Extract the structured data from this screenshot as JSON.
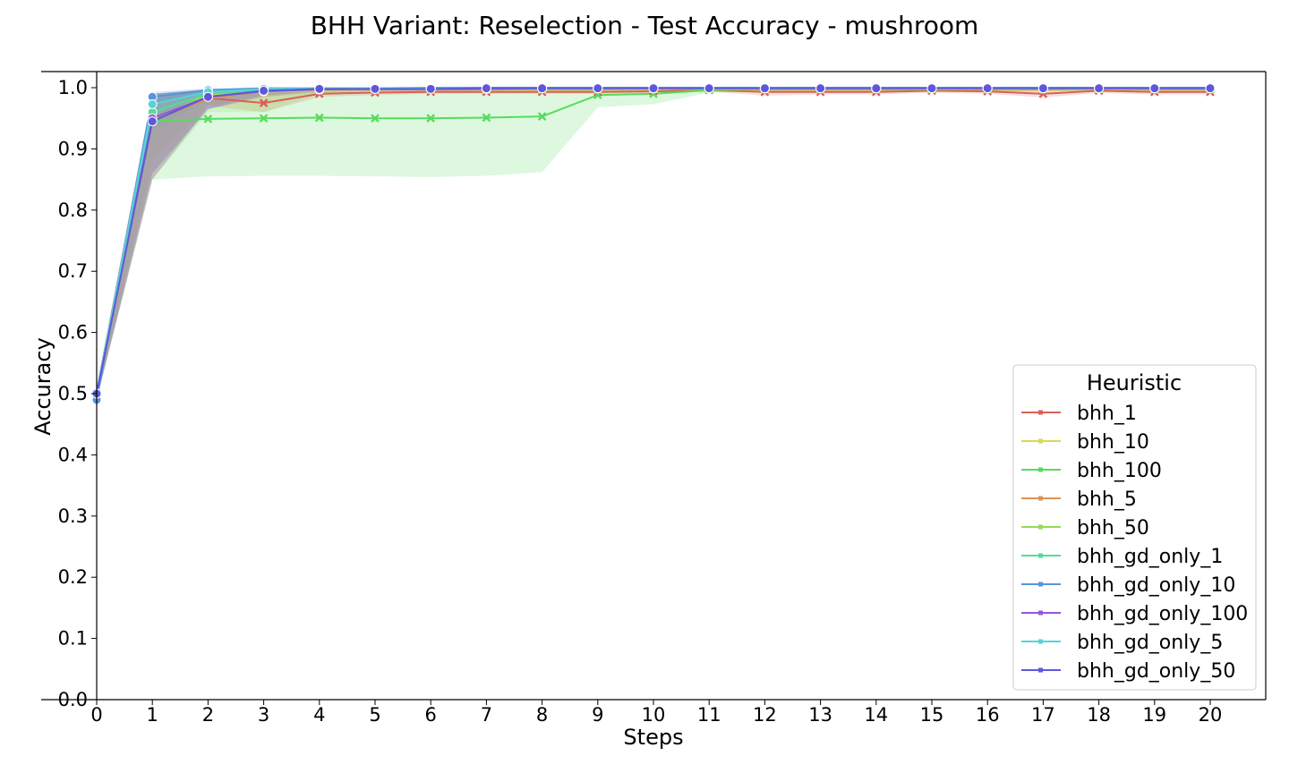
{
  "chart_data": {
    "type": "line",
    "title": "BHH Variant: Reselection - Test Accuracy - mushroom",
    "xlabel": "Steps",
    "ylabel": "Accuracy",
    "xlim": [
      0,
      21
    ],
    "ylim": [
      0.0,
      1.0
    ],
    "xticks": [
      "0",
      "1",
      "2",
      "3",
      "4",
      "5",
      "6",
      "7",
      "8",
      "9",
      "10",
      "11",
      "12",
      "13",
      "14",
      "15",
      "16",
      "17",
      "18",
      "19",
      "20"
    ],
    "yticks": [
      "0.0",
      "0.1",
      "0.2",
      "0.3",
      "0.4",
      "0.5",
      "0.6",
      "0.7",
      "0.8",
      "0.9",
      "1.0"
    ],
    "grid": false,
    "legend_title": "Heuristic",
    "legend_position": "lower-right",
    "x": [
      0,
      1,
      2,
      3,
      4,
      5,
      6,
      7,
      8,
      9,
      10,
      11,
      12,
      13,
      14,
      15,
      16,
      17,
      18,
      19,
      20
    ],
    "series": [
      {
        "name": "bhh_1",
        "color": "#db5f57",
        "marker": "x",
        "values": [
          0.5,
          0.95,
          0.983,
          0.975,
          0.99,
          0.992,
          0.993,
          0.993,
          0.993,
          0.993,
          0.994,
          0.996,
          0.993,
          0.993,
          0.993,
          0.995,
          0.994,
          0.99,
          0.995,
          0.993,
          0.993
        ],
        "ci_low": [
          0.49,
          0.85,
          0.97,
          0.96,
          0.985,
          0.988,
          0.99,
          0.99,
          0.99,
          0.99,
          0.991,
          0.993,
          0.987,
          0.989,
          0.989,
          0.992,
          0.99,
          0.984,
          0.991,
          0.989,
          0.989
        ],
        "ci_high": [
          0.51,
          0.99,
          0.995,
          0.99,
          0.995,
          0.996,
          0.996,
          0.996,
          0.996,
          0.996,
          0.997,
          0.999,
          0.998,
          0.997,
          0.997,
          0.998,
          0.998,
          0.996,
          0.999,
          0.997,
          0.997
        ]
      },
      {
        "name": "bhh_10",
        "color": "#d3db57",
        "marker": "x",
        "values": [
          0.5,
          0.945,
          0.987,
          0.993,
          0.996,
          0.997,
          0.997,
          0.997,
          0.997,
          0.997,
          0.998,
          0.998,
          0.997,
          0.997,
          0.997,
          0.998,
          0.997,
          0.997,
          0.998,
          0.997,
          0.997
        ],
        "ci_low": [
          0.49,
          0.88,
          0.97,
          0.985,
          0.99,
          0.994,
          0.994,
          0.994,
          0.994,
          0.994,
          0.995,
          0.995,
          0.994,
          0.994,
          0.994,
          0.995,
          0.994,
          0.994,
          0.995,
          0.994,
          0.994
        ],
        "ci_high": [
          0.51,
          0.99,
          0.997,
          0.999,
          1.0,
          1.0,
          1.0,
          1.0,
          1.0,
          1.0,
          1.0,
          1.0,
          1.0,
          1.0,
          1.0,
          1.0,
          1.0,
          1.0,
          1.0,
          1.0,
          1.0
        ]
      },
      {
        "name": "bhh_100",
        "color": "#57db5f",
        "marker": "x",
        "values": [
          0.5,
          0.945,
          0.949,
          0.95,
          0.951,
          0.95,
          0.95,
          0.951,
          0.953,
          0.988,
          0.99,
          0.996,
          0.997,
          0.997,
          0.997,
          0.997,
          0.997,
          0.997,
          0.998,
          0.998,
          0.998
        ],
        "ci_low": [
          0.49,
          0.85,
          0.855,
          0.856,
          0.856,
          0.855,
          0.854,
          0.856,
          0.862,
          0.968,
          0.973,
          0.992,
          0.994,
          0.994,
          0.994,
          0.994,
          0.994,
          0.994,
          0.995,
          0.995,
          0.995
        ],
        "ci_high": [
          0.51,
          0.99,
          0.995,
          0.997,
          0.998,
          0.998,
          0.998,
          0.998,
          0.998,
          0.999,
          0.999,
          1.0,
          1.0,
          1.0,
          1.0,
          1.0,
          1.0,
          1.0,
          1.0,
          1.0,
          1.0
        ]
      },
      {
        "name": "bhh_5",
        "color": "#db9457",
        "marker": "x",
        "values": [
          0.5,
          0.945,
          0.982,
          0.994,
          0.997,
          0.997,
          0.997,
          0.997,
          0.997,
          0.997,
          0.998,
          0.998,
          0.997,
          0.997,
          0.997,
          0.998,
          0.997,
          0.997,
          0.998,
          0.997,
          0.997
        ],
        "ci_low": [
          0.49,
          0.86,
          0.965,
          0.985,
          0.994,
          0.994,
          0.994,
          0.994,
          0.994,
          0.994,
          0.995,
          0.995,
          0.994,
          0.994,
          0.994,
          0.995,
          0.994,
          0.994,
          0.995,
          0.994,
          0.994
        ],
        "ci_high": [
          0.51,
          0.99,
          0.995,
          0.999,
          1.0,
          1.0,
          1.0,
          1.0,
          1.0,
          1.0,
          1.0,
          1.0,
          1.0,
          1.0,
          1.0,
          1.0,
          1.0,
          1.0,
          1.0,
          1.0,
          1.0
        ]
      },
      {
        "name": "bhh_50",
        "color": "#94db57",
        "marker": "x",
        "values": [
          0.5,
          0.945,
          0.99,
          0.993,
          0.998,
          0.998,
          0.998,
          0.998,
          0.998,
          0.998,
          0.998,
          0.998,
          0.998,
          0.998,
          0.998,
          0.998,
          0.998,
          0.998,
          0.998,
          0.998,
          0.998
        ],
        "ci_low": [
          0.49,
          0.85,
          0.96,
          0.96,
          0.99,
          0.995,
          0.995,
          0.995,
          0.995,
          0.995,
          0.995,
          0.995,
          0.995,
          0.995,
          0.995,
          0.995,
          0.995,
          0.995,
          0.995,
          0.995,
          0.995
        ],
        "ci_high": [
          0.51,
          0.99,
          0.998,
          0.999,
          1.0,
          1.0,
          1.0,
          1.0,
          1.0,
          1.0,
          1.0,
          1.0,
          1.0,
          1.0,
          1.0,
          1.0,
          1.0,
          1.0,
          1.0,
          1.0,
          1.0
        ]
      },
      {
        "name": "bhh_gd_only_1",
        "color": "#57db94",
        "marker": "o",
        "values": [
          0.5,
          0.96,
          0.99,
          0.997,
          0.998,
          0.998,
          0.999,
          0.999,
          0.999,
          0.999,
          0.999,
          0.999,
          0.999,
          0.999,
          0.999,
          0.999,
          0.999,
          0.999,
          0.999,
          0.999,
          0.999
        ],
        "ci_low": [
          0.49,
          0.93,
          0.98,
          0.993,
          0.996,
          0.996,
          0.997,
          0.997,
          0.997,
          0.997,
          0.997,
          0.997,
          0.997,
          0.997,
          0.997,
          0.997,
          0.997,
          0.997,
          0.997,
          0.997,
          0.997
        ],
        "ci_high": [
          0.51,
          0.985,
          0.997,
          1.0,
          1.0,
          1.0,
          1.0,
          1.0,
          1.0,
          1.0,
          1.0,
          1.0,
          1.0,
          1.0,
          1.0,
          1.0,
          1.0,
          1.0,
          1.0,
          1.0,
          1.0
        ]
      },
      {
        "name": "bhh_gd_only_10",
        "color": "#5794db",
        "marker": "o",
        "values": [
          0.49,
          0.985,
          0.996,
          0.999,
          0.999,
          0.999,
          1.0,
          1.0,
          1.0,
          1.0,
          1.0,
          1.0,
          1.0,
          1.0,
          1.0,
          1.0,
          1.0,
          1.0,
          1.0,
          1.0,
          1.0
        ],
        "ci_low": [
          0.48,
          0.975,
          0.993,
          0.997,
          0.998,
          0.998,
          0.999,
          0.999,
          0.999,
          0.999,
          0.999,
          0.999,
          0.999,
          0.999,
          0.999,
          0.999,
          0.999,
          0.999,
          0.999,
          0.999,
          0.999
        ],
        "ci_high": [
          0.5,
          0.993,
          0.999,
          1.0,
          1.0,
          1.0,
          1.0,
          1.0,
          1.0,
          1.0,
          1.0,
          1.0,
          1.0,
          1.0,
          1.0,
          1.0,
          1.0,
          1.0,
          1.0,
          1.0,
          1.0
        ]
      },
      {
        "name": "bhh_gd_only_100",
        "color": "#9457db",
        "marker": "o",
        "values": [
          0.5,
          0.95,
          0.985,
          0.994,
          0.997,
          0.998,
          0.998,
          0.998,
          0.999,
          0.999,
          0.999,
          0.999,
          0.999,
          0.999,
          0.999,
          0.999,
          0.999,
          0.999,
          0.999,
          0.999,
          0.999
        ],
        "ci_low": [
          0.49,
          0.85,
          0.965,
          0.985,
          0.993,
          0.995,
          0.995,
          0.995,
          0.997,
          0.997,
          0.997,
          0.997,
          0.997,
          0.997,
          0.997,
          0.997,
          0.997,
          0.997,
          0.997,
          0.997,
          0.997
        ],
        "ci_high": [
          0.51,
          0.99,
          0.997,
          0.999,
          1.0,
          1.0,
          1.0,
          1.0,
          1.0,
          1.0,
          1.0,
          1.0,
          1.0,
          1.0,
          1.0,
          1.0,
          1.0,
          1.0,
          1.0,
          1.0,
          1.0
        ]
      },
      {
        "name": "bhh_gd_only_5",
        "color": "#57d3db",
        "marker": "o",
        "values": [
          0.5,
          0.973,
          0.993,
          0.998,
          0.999,
          0.999,
          0.999,
          0.999,
          0.999,
          0.999,
          0.999,
          0.999,
          0.999,
          0.999,
          0.999,
          0.999,
          0.999,
          0.999,
          0.999,
          0.999,
          0.999
        ],
        "ci_low": [
          0.49,
          0.955,
          0.986,
          0.995,
          0.997,
          0.997,
          0.997,
          0.997,
          0.997,
          0.997,
          0.997,
          0.997,
          0.997,
          0.997,
          0.997,
          0.997,
          0.997,
          0.997,
          0.997,
          0.997,
          0.997
        ],
        "ci_high": [
          0.51,
          0.99,
          0.998,
          1.0,
          1.0,
          1.0,
          1.0,
          1.0,
          1.0,
          1.0,
          1.0,
          1.0,
          1.0,
          1.0,
          1.0,
          1.0,
          1.0,
          1.0,
          1.0,
          1.0,
          1.0
        ]
      },
      {
        "name": "bhh_gd_only_50",
        "color": "#5f57db",
        "marker": "o",
        "values": [
          0.5,
          0.945,
          0.985,
          0.995,
          0.998,
          0.998,
          0.998,
          0.999,
          0.999,
          0.999,
          0.999,
          0.999,
          0.999,
          0.999,
          0.999,
          0.999,
          0.999,
          0.999,
          0.999,
          0.999,
          0.999
        ],
        "ci_low": [
          0.49,
          0.86,
          0.965,
          0.988,
          0.995,
          0.995,
          0.995,
          0.997,
          0.997,
          0.997,
          0.997,
          0.997,
          0.997,
          0.997,
          0.997,
          0.997,
          0.997,
          0.997,
          0.997,
          0.997,
          0.997
        ],
        "ci_high": [
          0.51,
          0.99,
          0.997,
          0.999,
          1.0,
          1.0,
          1.0,
          1.0,
          1.0,
          1.0,
          1.0,
          1.0,
          1.0,
          1.0,
          1.0,
          1.0,
          1.0,
          1.0,
          1.0,
          1.0,
          1.0
        ]
      }
    ]
  }
}
